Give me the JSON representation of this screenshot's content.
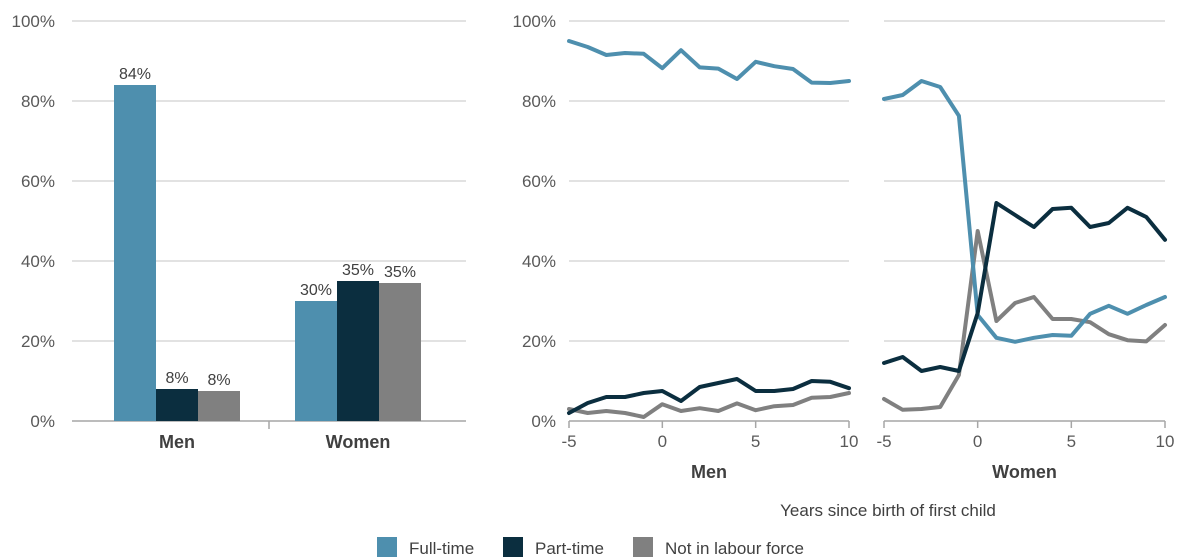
{
  "colors": {
    "full_time": "#4e8fae",
    "part_time": "#0b2e3f",
    "not_in_lf": "#808080",
    "grid": "#d9d9d9",
    "axis": "#a6a6a6"
  },
  "legend": {
    "full_time": "Full-time",
    "part_time": "Part-time",
    "not_in_lf": "Not in labour force"
  },
  "line_panels_xlabel": "Years since birth of first child",
  "chart_data": [
    {
      "type": "bar",
      "categories": [
        "Men",
        "Women"
      ],
      "ylim": [
        0,
        100
      ],
      "yticks": [
        "0%",
        "20%",
        "40%",
        "60%",
        "80%",
        "100%"
      ],
      "yticks_values": [
        0,
        20,
        40,
        60,
        80,
        100
      ],
      "series": [
        {
          "key": "full_time",
          "values": [
            84,
            30
          ],
          "labels": [
            "84%",
            "30%"
          ]
        },
        {
          "key": "part_time",
          "values": [
            8,
            35
          ],
          "labels": [
            "8%",
            "35%"
          ]
        },
        {
          "key": "not_in_lf",
          "values": [
            7.5,
            34.5
          ],
          "labels": [
            "8%",
            "35%"
          ]
        }
      ]
    },
    {
      "type": "line",
      "panel": "Men",
      "x": [
        -5,
        -4,
        -3,
        -2,
        -1,
        0,
        1,
        2,
        3,
        4,
        5,
        6,
        7,
        8,
        9,
        10
      ],
      "xticks": [
        "-5",
        "0",
        "5",
        "10"
      ],
      "xticks_values": [
        -5,
        0,
        5,
        10
      ],
      "ylim": [
        0,
        100
      ],
      "yticks": [
        "0%",
        "20%",
        "40%",
        "60%",
        "80%",
        "100%"
      ],
      "yticks_values": [
        0,
        20,
        40,
        60,
        80,
        100
      ],
      "series": [
        {
          "key": "full_time",
          "values": [
            95,
            93.5,
            91.5,
            92,
            91.8,
            88.2,
            92.7,
            88.4,
            88.1,
            85.5,
            89.8,
            88.7,
            88,
            84.6,
            84.5,
            85
          ]
        },
        {
          "key": "part_time",
          "values": [
            2,
            4.5,
            6,
            6,
            7,
            7.5,
            5,
            8.5,
            9.5,
            10.5,
            7.5,
            7.5,
            8,
            10,
            9.8,
            8.2
          ]
        },
        {
          "key": "not_in_lf",
          "values": [
            3,
            2,
            2.5,
            2,
            1,
            4.2,
            2.5,
            3.2,
            2.5,
            4.4,
            2.7,
            3.7,
            4,
            5.8,
            6,
            7
          ]
        }
      ]
    },
    {
      "type": "line",
      "panel": "Women",
      "x": [
        -5,
        -4,
        -3,
        -2,
        -1,
        0,
        1,
        2,
        3,
        4,
        5,
        6,
        7,
        8,
        9,
        10
      ],
      "xticks": [
        "-5",
        "0",
        "5",
        "10"
      ],
      "xticks_values": [
        -5,
        0,
        5,
        10
      ],
      "ylim": [
        0,
        100
      ],
      "series": [
        {
          "key": "full_time",
          "values": [
            80.5,
            81.5,
            85,
            83.5,
            76.3,
            26.5,
            20.8,
            19.8,
            20.8,
            21.5,
            21.3,
            26.8,
            28.8,
            26.8,
            29,
            31
          ]
        },
        {
          "key": "part_time",
          "values": [
            14.5,
            16,
            12.5,
            13.5,
            12.5,
            27,
            54.5,
            51.5,
            48.5,
            53,
            53.3,
            48.5,
            49.5,
            53.3,
            51,
            45.3
          ]
        },
        {
          "key": "not_in_lf",
          "values": [
            5.5,
            2.8,
            3,
            3.5,
            11.5,
            47.5,
            25,
            29.5,
            31,
            25.5,
            25.5,
            24.7,
            21.7,
            20.2,
            19.9,
            24
          ]
        }
      ]
    }
  ]
}
